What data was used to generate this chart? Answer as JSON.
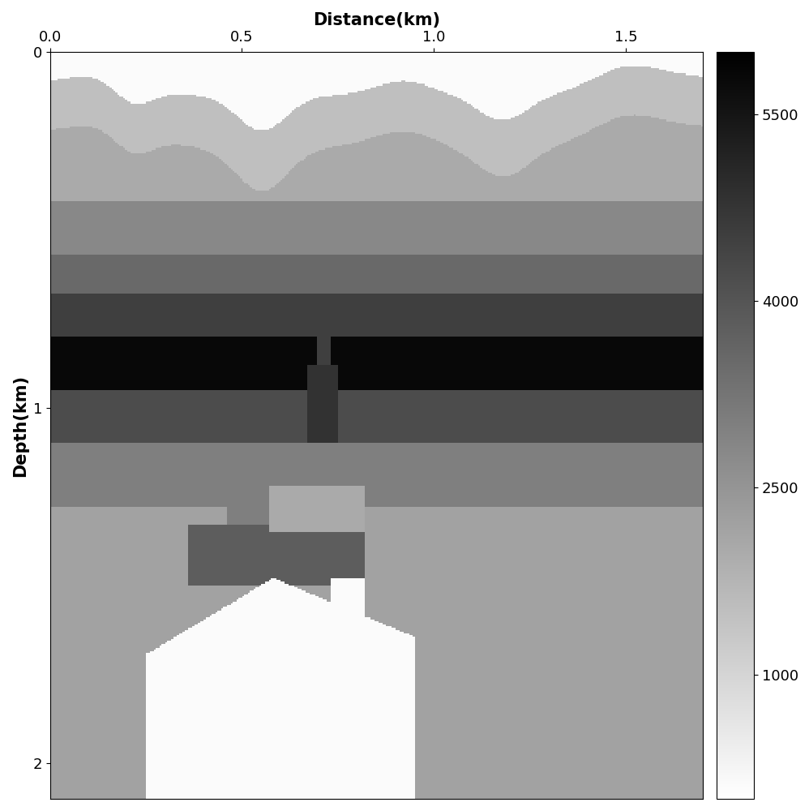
{
  "title": "Distance(km)",
  "ylabel": "Depth(km)",
  "xlim": [
    0,
    1.7
  ],
  "ylim": [
    2.1,
    0
  ],
  "xticks": [
    0,
    0.5,
    1.0,
    1.5
  ],
  "yticks": [
    0,
    1,
    2
  ],
  "vmin": 0,
  "vmax": 6000,
  "colorbar_ticks": [
    1000,
    2500,
    4000,
    5500
  ],
  "nx": 340,
  "nz": 420,
  "layer_velocities": [
    100,
    1500,
    2000,
    2800,
    3500,
    4500,
    5800,
    4200,
    3000,
    2200
  ],
  "layer_bounds_flat": [
    0.3,
    0.42,
    0.57,
    0.68,
    0.8,
    0.95,
    1.1,
    1.28,
    1.5
  ],
  "surf_base": 0.16
}
